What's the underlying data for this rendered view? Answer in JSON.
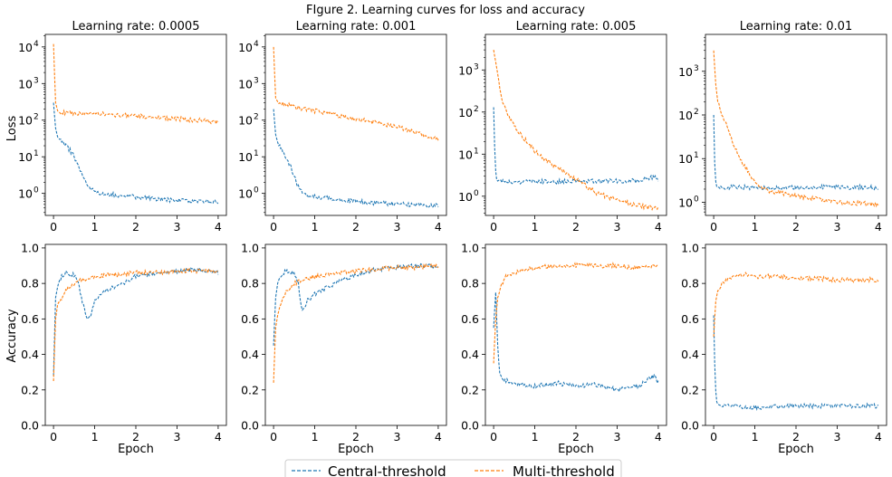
{
  "figure": {
    "title": "FIgure 2. Learning curves for loss and accuracy",
    "row_ylabels": [
      "Loss",
      "Accuracy"
    ],
    "xlabel": "Epoch"
  },
  "legend": {
    "placement": "bottom-center",
    "entries": [
      "Central-threshold",
      "Multi-threshold"
    ]
  },
  "colors": {
    "central": "#1f77b4",
    "multi": "#ff7f0e"
  },
  "chart_data": [
    {
      "type": "line",
      "title": "Learning rate: 0.0005",
      "xlabel": "",
      "ylabel": "Loss",
      "xlim": [
        -0.2,
        4.2
      ],
      "ylim": [
        0.25,
        22000
      ],
      "yscale": "log",
      "xticks": [
        0,
        1,
        2,
        3,
        4
      ],
      "yticks": [
        1,
        10,
        100,
        1000,
        10000
      ],
      "ytick_labels": [
        "10^0",
        "10^1",
        "10^2",
        "10^3",
        "10^4"
      ],
      "series": [
        {
          "name": "Central-threshold",
          "x": [
            0,
            0.05,
            0.1,
            0.2,
            0.3,
            0.4,
            0.5,
            0.6,
            0.7,
            0.8,
            0.9,
            1.0,
            1.2,
            1.5,
            2.0,
            2.5,
            3.0,
            3.5,
            4.0
          ],
          "values": [
            300,
            60,
            35,
            25,
            20,
            15,
            10,
            6,
            3,
            1.8,
            1.3,
            1.1,
            1.0,
            0.9,
            0.8,
            0.7,
            0.65,
            0.6,
            0.6
          ]
        },
        {
          "name": "Multi-threshold",
          "x": [
            0,
            0.05,
            0.1,
            0.3,
            0.5,
            1.0,
            1.5,
            2.0,
            2.5,
            3.0,
            3.5,
            4.0
          ],
          "values": [
            12000,
            300,
            180,
            160,
            155,
            150,
            140,
            130,
            120,
            110,
            100,
            90
          ]
        }
      ]
    },
    {
      "type": "line",
      "title": "Learning rate: 0.001",
      "xlabel": "",
      "ylabel": "",
      "xlim": [
        -0.2,
        4.2
      ],
      "ylim": [
        0.25,
        22000
      ],
      "yscale": "log",
      "xticks": [
        0,
        1,
        2,
        3,
        4
      ],
      "yticks": [
        1,
        10,
        100,
        1000,
        10000
      ],
      "ytick_labels": [
        "10^0",
        "10^1",
        "10^2",
        "10^3",
        "10^4"
      ],
      "series": [
        {
          "name": "Central-threshold",
          "x": [
            0,
            0.05,
            0.1,
            0.2,
            0.3,
            0.4,
            0.5,
            0.6,
            0.7,
            0.8,
            1.0,
            1.5,
            2.0,
            2.5,
            3.0,
            3.5,
            4.0
          ],
          "values": [
            200,
            40,
            25,
            15,
            10,
            6,
            3,
            1.5,
            1.1,
            0.9,
            0.8,
            0.7,
            0.6,
            0.55,
            0.5,
            0.5,
            0.45
          ]
        },
        {
          "name": "Multi-threshold",
          "x": [
            0,
            0.05,
            0.1,
            0.3,
            0.5,
            1.0,
            1.5,
            2.0,
            2.5,
            3.0,
            3.5,
            4.0
          ],
          "values": [
            10000,
            400,
            320,
            270,
            230,
            180,
            140,
            110,
            85,
            65,
            45,
            30
          ]
        }
      ]
    },
    {
      "type": "line",
      "title": "Learning rate: 0.005",
      "xlabel": "",
      "ylabel": "",
      "xlim": [
        -0.2,
        4.2
      ],
      "ylim": [
        0.35,
        7000
      ],
      "yscale": "log",
      "xticks": [
        0,
        1,
        2,
        3,
        4
      ],
      "yticks": [
        1,
        10,
        100,
        1000
      ],
      "ytick_labels": [
        "10^0",
        "10^1",
        "10^2",
        "10^3"
      ],
      "series": [
        {
          "name": "Central-threshold",
          "x": [
            0,
            0.03,
            0.06,
            0.1,
            0.5,
            1.0,
            1.5,
            2.0,
            2.5,
            3.0,
            3.5,
            3.9,
            4.0
          ],
          "values": [
            130,
            10,
            2.5,
            2.3,
            2.2,
            2.3,
            2.2,
            2.4,
            2.3,
            2.3,
            2.3,
            3.0,
            2.2
          ]
        },
        {
          "name": "Multi-threshold",
          "x": [
            0,
            0.1,
            0.2,
            0.4,
            0.6,
            0.8,
            1.0,
            1.5,
            2.0,
            2.5,
            3.0,
            3.5,
            4.0
          ],
          "values": [
            3000,
            800,
            200,
            70,
            35,
            20,
            12,
            5,
            2.5,
            1.2,
            0.8,
            0.6,
            0.5
          ]
        }
      ]
    },
    {
      "type": "line",
      "title": "Learning rate: 0.01",
      "xlabel": "",
      "ylabel": "",
      "xlim": [
        -0.2,
        4.2
      ],
      "ylim": [
        0.5,
        7000
      ],
      "yscale": "log",
      "xticks": [
        0,
        1,
        2,
        3,
        4
      ],
      "yticks": [
        1,
        10,
        100,
        1000
      ],
      "ytick_labels": [
        "10^0",
        "10^1",
        "10^2",
        "10^3"
      ],
      "series": [
        {
          "name": "Central-threshold",
          "x": [
            0,
            0.03,
            0.06,
            0.1,
            0.5,
            1.0,
            2.0,
            3.0,
            4.0
          ],
          "values": [
            100,
            5,
            2.3,
            2.2,
            2.2,
            2.2,
            2.2,
            2.2,
            2.2
          ]
        },
        {
          "name": "Multi-threshold",
          "x": [
            0,
            0.05,
            0.1,
            0.2,
            0.3,
            0.5,
            0.7,
            1.0,
            1.2,
            1.5,
            2.0,
            2.5,
            3.0,
            3.5,
            4.0
          ],
          "values": [
            3000,
            500,
            200,
            100,
            60,
            20,
            8,
            3,
            2,
            1.7,
            1.4,
            1.2,
            1.0,
            0.95,
            0.9
          ]
        }
      ]
    },
    {
      "type": "line",
      "title": "",
      "xlabel": "Epoch",
      "ylabel": "Accuracy",
      "xlim": [
        -0.2,
        4.2
      ],
      "ylim": [
        0,
        1.02
      ],
      "yscale": "linear",
      "xticks": [
        0,
        1,
        2,
        3,
        4
      ],
      "yticks": [
        0,
        0.2,
        0.4,
        0.6,
        0.8,
        1.0
      ],
      "ytick_labels": [
        "0.0",
        "0.2",
        "0.4",
        "0.6",
        "0.8",
        "1.0"
      ],
      "series": [
        {
          "name": "Central-threshold",
          "x": [
            0,
            0.05,
            0.1,
            0.2,
            0.3,
            0.5,
            0.6,
            0.7,
            0.8,
            0.85,
            0.9,
            1.0,
            1.2,
            1.5,
            2.0,
            2.5,
            3.0,
            3.5,
            4.0
          ],
          "values": [
            0.28,
            0.72,
            0.78,
            0.84,
            0.86,
            0.85,
            0.8,
            0.7,
            0.62,
            0.6,
            0.62,
            0.7,
            0.75,
            0.78,
            0.84,
            0.86,
            0.87,
            0.88,
            0.86
          ]
        },
        {
          "name": "Multi-threshold",
          "x": [
            0,
            0.05,
            0.1,
            0.2,
            0.3,
            0.5,
            0.7,
            1.0,
            1.5,
            2.0,
            2.5,
            3.0,
            3.5,
            4.0
          ],
          "values": [
            0.25,
            0.6,
            0.68,
            0.72,
            0.76,
            0.8,
            0.82,
            0.84,
            0.85,
            0.86,
            0.86,
            0.87,
            0.87,
            0.87
          ]
        }
      ]
    },
    {
      "type": "line",
      "title": "",
      "xlabel": "Epoch",
      "ylabel": "",
      "xlim": [
        -0.2,
        4.2
      ],
      "ylim": [
        0,
        1.02
      ],
      "yscale": "linear",
      "xticks": [
        0,
        1,
        2,
        3,
        4
      ],
      "yticks": [
        0,
        0.2,
        0.4,
        0.6,
        0.8,
        1.0
      ],
      "ytick_labels": [
        "0.0",
        "0.2",
        "0.4",
        "0.6",
        "0.8",
        "1.0"
      ],
      "series": [
        {
          "name": "Central-threshold",
          "x": [
            0,
            0.05,
            0.1,
            0.2,
            0.3,
            0.5,
            0.6,
            0.65,
            0.7,
            0.75,
            0.8,
            1.0,
            1.5,
            2.0,
            2.5,
            3.0,
            3.5,
            4.0
          ],
          "values": [
            0.45,
            0.72,
            0.8,
            0.85,
            0.87,
            0.86,
            0.8,
            0.7,
            0.64,
            0.66,
            0.7,
            0.74,
            0.8,
            0.85,
            0.88,
            0.89,
            0.9,
            0.9
          ]
        },
        {
          "name": "Multi-threshold",
          "x": [
            0,
            0.05,
            0.1,
            0.2,
            0.3,
            0.5,
            0.7,
            1.0,
            1.5,
            2.0,
            2.5,
            3.0,
            3.5,
            4.0
          ],
          "values": [
            0.24,
            0.55,
            0.62,
            0.7,
            0.75,
            0.8,
            0.82,
            0.84,
            0.86,
            0.87,
            0.88,
            0.89,
            0.89,
            0.9
          ]
        }
      ]
    },
    {
      "type": "line",
      "title": "",
      "xlabel": "Epoch",
      "ylabel": "",
      "xlim": [
        -0.2,
        4.2
      ],
      "ylim": [
        0,
        1.02
      ],
      "yscale": "linear",
      "xticks": [
        0,
        1,
        2,
        3,
        4
      ],
      "yticks": [
        0,
        0.2,
        0.4,
        0.6,
        0.8,
        1.0
      ],
      "ytick_labels": [
        "0.0",
        "0.2",
        "0.4",
        "0.6",
        "0.8",
        "1.0"
      ],
      "series": [
        {
          "name": "Central-threshold",
          "x": [
            0,
            0.05,
            0.1,
            0.15,
            0.2,
            0.5,
            1.0,
            1.5,
            2.0,
            2.5,
            3.0,
            3.5,
            3.9,
            4.0
          ],
          "values": [
            0.55,
            0.75,
            0.45,
            0.28,
            0.26,
            0.24,
            0.22,
            0.24,
            0.22,
            0.23,
            0.2,
            0.22,
            0.28,
            0.24
          ]
        },
        {
          "name": "Multi-threshold",
          "x": [
            0,
            0.05,
            0.1,
            0.2,
            0.3,
            0.5,
            0.7,
            1.0,
            1.5,
            2.0,
            2.5,
            3.0,
            3.5,
            4.0
          ],
          "values": [
            0.35,
            0.6,
            0.72,
            0.8,
            0.84,
            0.86,
            0.88,
            0.89,
            0.9,
            0.9,
            0.9,
            0.9,
            0.89,
            0.9
          ]
        }
      ]
    },
    {
      "type": "line",
      "title": "",
      "xlabel": "Epoch",
      "ylabel": "",
      "xlim": [
        -0.2,
        4.2
      ],
      "ylim": [
        0,
        1.02
      ],
      "yscale": "linear",
      "xticks": [
        0,
        1,
        2,
        3,
        4
      ],
      "yticks": [
        0,
        0.2,
        0.4,
        0.6,
        0.8,
        1.0
      ],
      "ytick_labels": [
        "0.0",
        "0.2",
        "0.4",
        "0.6",
        "0.8",
        "1.0"
      ],
      "series": [
        {
          "name": "Central-threshold",
          "x": [
            0,
            0.03,
            0.06,
            0.1,
            0.2,
            0.5,
            1.0,
            2.0,
            3.0,
            4.0
          ],
          "values": [
            0.62,
            0.3,
            0.14,
            0.12,
            0.11,
            0.11,
            0.1,
            0.11,
            0.11,
            0.11
          ]
        },
        {
          "name": "Multi-threshold",
          "x": [
            0,
            0.05,
            0.1,
            0.2,
            0.3,
            0.5,
            0.8,
            1.0,
            1.5,
            2.0,
            2.5,
            3.0,
            3.5,
            4.0
          ],
          "values": [
            0.5,
            0.7,
            0.76,
            0.8,
            0.82,
            0.84,
            0.85,
            0.84,
            0.84,
            0.83,
            0.83,
            0.82,
            0.82,
            0.82
          ]
        }
      ]
    }
  ]
}
